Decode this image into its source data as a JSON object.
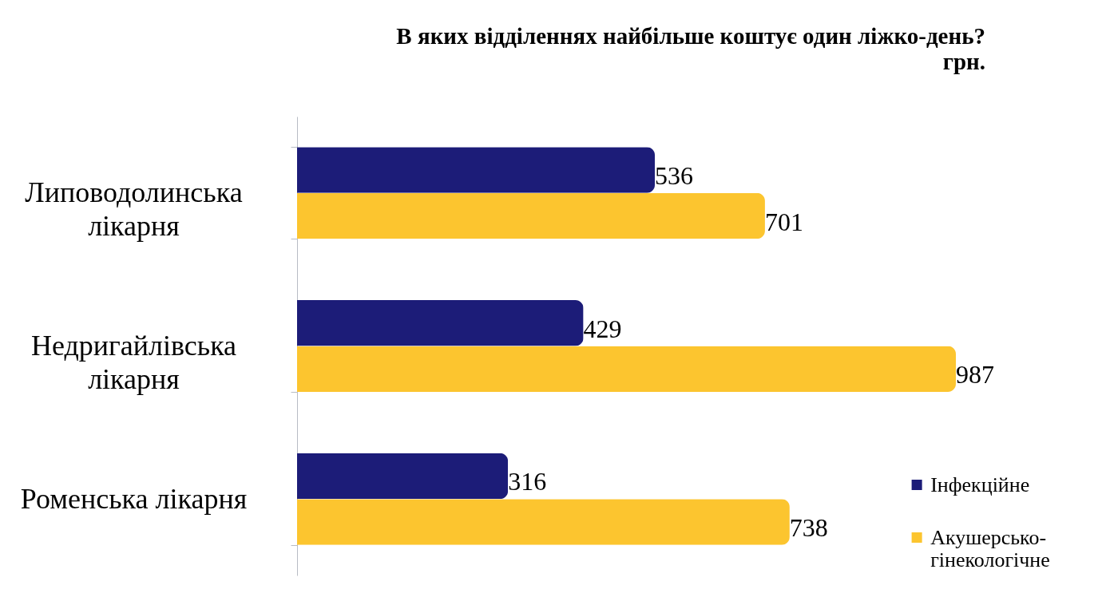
{
  "chart_data": {
    "type": "bar",
    "orientation": "horizontal",
    "title": "В яких відділеннях найбільше коштує один ліжко-день?",
    "subtitle": "грн.",
    "categories": [
      "Липоводолинська лікарня",
      "Недригайлівська лікарня",
      "Роменська лікарня"
    ],
    "series": [
      {
        "name": "Інфекційне",
        "color": "#1c1c78",
        "values": [
          536,
          429,
          316
        ]
      },
      {
        "name": "Акушерсько-гінекологічне",
        "color": "#fcc52f",
        "values": [
          701,
          987,
          738
        ]
      }
    ],
    "data_labels": true,
    "legend": "bottom right"
  }
}
